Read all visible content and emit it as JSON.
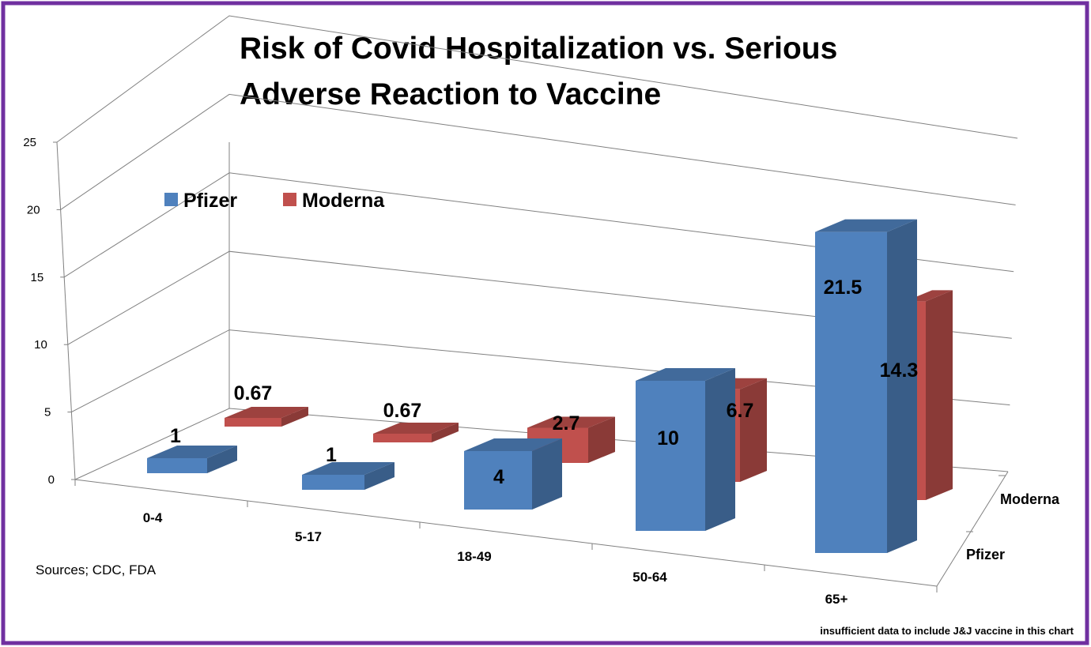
{
  "chart_data": {
    "type": "bar",
    "title_line1": "Risk of Covid Hospitalization vs. Serious",
    "title_line2": "Adverse Reaction to Vaccine",
    "categories": [
      "0-4",
      "5-17",
      "18-49",
      "50-64",
      "65+"
    ],
    "series": [
      {
        "name": "Pfizer",
        "values": [
          1,
          1,
          4,
          10,
          21.5
        ],
        "labels": [
          "1",
          "1",
          "4",
          "10",
          "21.5"
        ],
        "color": "#4f81bd"
      },
      {
        "name": "Moderna",
        "values": [
          0.67,
          0.67,
          2.7,
          6.7,
          14.3
        ],
        "labels": [
          "0.67",
          "0.67",
          "2.7",
          "6.7",
          "14.3"
        ],
        "color": "#c0504d"
      }
    ],
    "yaxis": {
      "ticks": [
        0,
        5,
        10,
        15,
        20,
        25
      ],
      "tick_labels": [
        "0",
        "5",
        "10",
        "15",
        "20",
        "25"
      ],
      "range": [
        0,
        25
      ]
    },
    "depth_labels": [
      "Moderna",
      "Pfizer"
    ],
    "legend": [
      "Pfizer",
      "Moderna"
    ],
    "legend_position": "top-left",
    "source": "Sources; CDC, FDA",
    "footnote": "insufficient data to include J&J vaccine in this chart",
    "colors": {
      "frame": "#7030a0",
      "grid": "#808080"
    }
  }
}
